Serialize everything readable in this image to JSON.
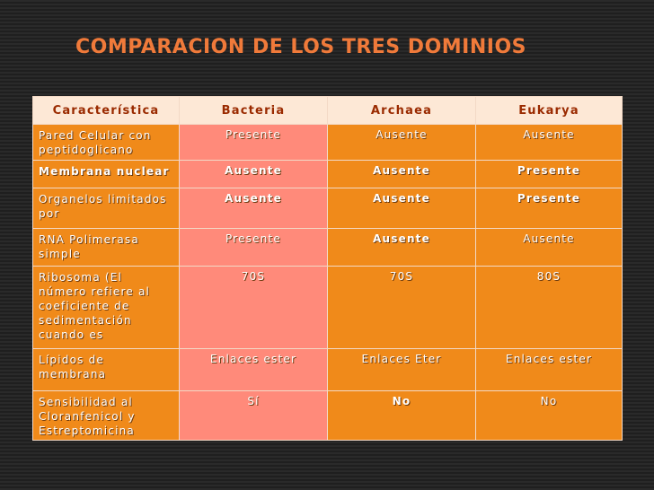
{
  "title": "COMPARACION DE LOS TRES DOMINIOS",
  "headers": [
    "Característica",
    "Bacteria",
    "Archaea",
    "Eukarya"
  ],
  "rows": [
    {
      "feature": "Pared Celular con peptidoglicano",
      "bacteria": "Presente",
      "archaea": "Ausente",
      "eukarya": "Ausente"
    },
    {
      "feature": "Membrana nuclear",
      "bacteria": "Ausente",
      "archaea": "Ausente",
      "eukarya": "Presente"
    },
    {
      "feature": "Organelos limitados por",
      "bacteria": "Ausente",
      "archaea": "Ausente",
      "eukarya": "Presente"
    },
    {
      "feature": "RNA Polimerasa simple",
      "bacteria": "Presente",
      "archaea": "Ausente",
      "eukarya": "Ausente"
    },
    {
      "feature": "Ribosoma (El número refiere al coeficiente de sedimentación cuando es",
      "bacteria": "70S",
      "archaea": "70S",
      "eukarya": "80S"
    },
    {
      "feature": "Lípidos de membrana",
      "bacteria": "Enlaces ester",
      "archaea": "Enlaces Eter",
      "eukarya": "Enlaces ester"
    },
    {
      "feature": "Sensibilidad al Cloranfenicol y Estreptomicina",
      "bacteria": "Sí",
      "archaea": "No",
      "eukarya": "No"
    }
  ],
  "colors": {
    "title": "#f07a3a",
    "header_bg": "#fde8d6",
    "header_text": "#9a2a00",
    "orange": "#f08a1a",
    "salmon": "#ff8a7a"
  }
}
